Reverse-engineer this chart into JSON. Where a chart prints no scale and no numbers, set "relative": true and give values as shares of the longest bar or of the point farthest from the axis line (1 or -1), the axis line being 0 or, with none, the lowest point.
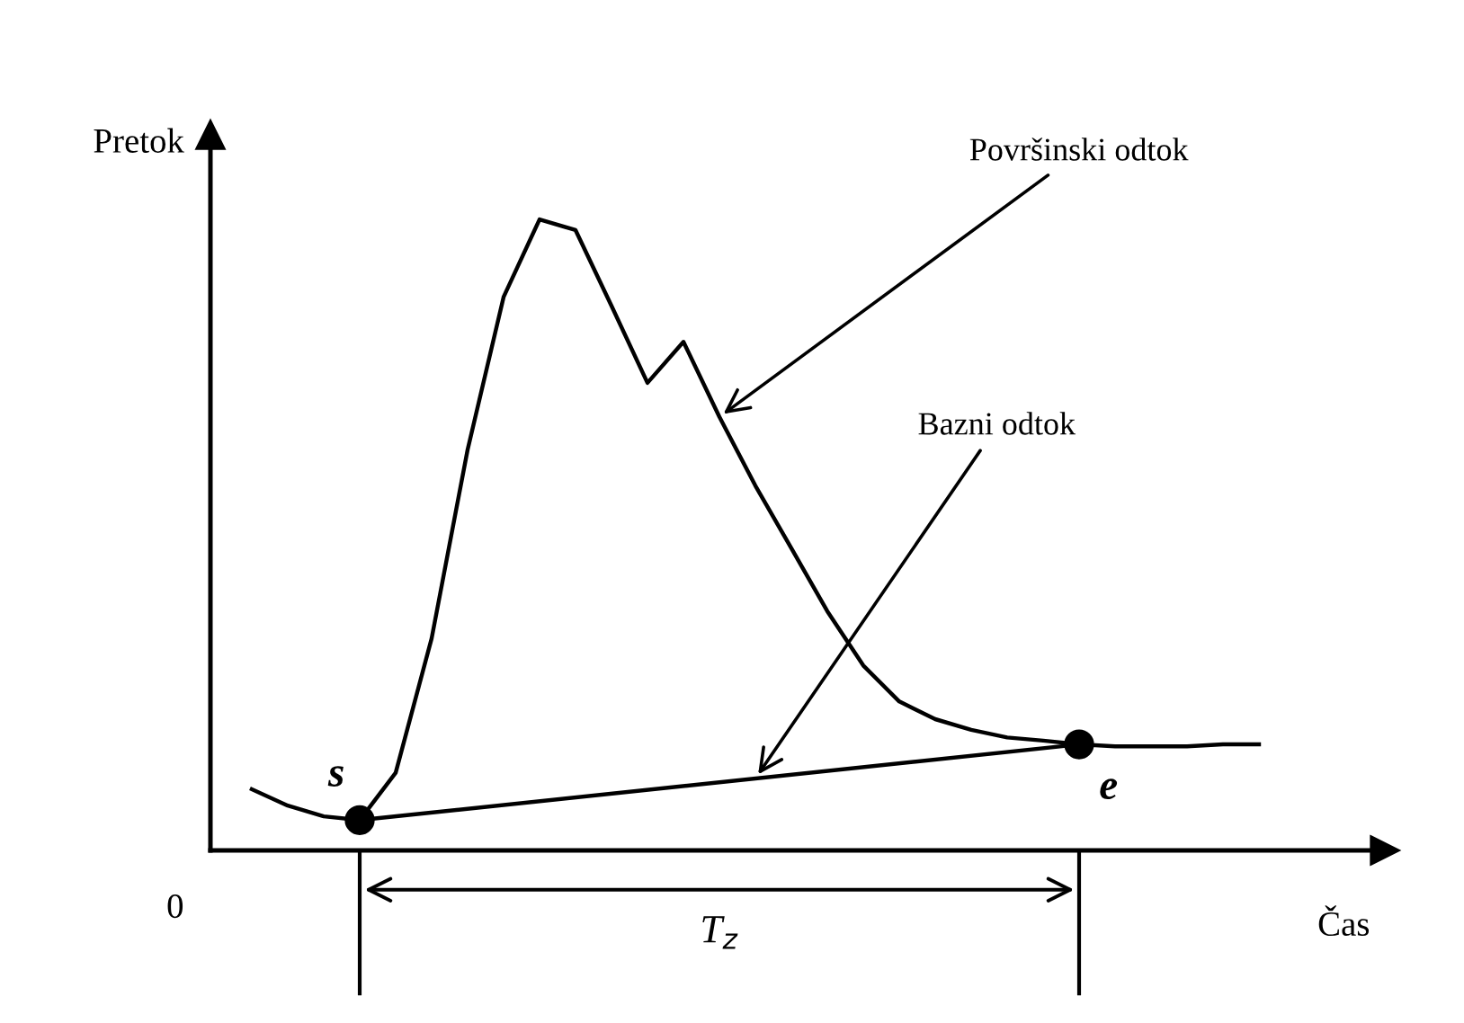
{
  "chart_data": {
    "type": "line",
    "relative": true,
    "xlabel": "Čas",
    "ylabel": "Pretok",
    "tick_labels": false,
    "marker": "none",
    "line_style": "solid",
    "annotations": [
      "0",
      "s",
      "e",
      "T$_{z}$"
    ],
    "categories": [
      null,
      null,
      null,
      null,
      null,
      null,
      null,
      null,
      null,
      null,
      null,
      null,
      null,
      null,
      null,
      null,
      null,
      null,
      null,
      null,
      null,
      null,
      null,
      null,
      null,
      null,
      null,
      null,
      null
    ],
    "series": [
      {
        "name": "Površinski odtok",
        "color": "#000000",
        "values": [
          0.097,
          0.071,
          0.054,
          0.048,
          0.123,
          0.336,
          0.635,
          0.877,
          1,
          0.983,
          0.863,
          0.741,
          0.806,
          0.687,
          0.578,
          0.479,
          0.379,
          0.293,
          0.236,
          0.208,
          0.191,
          0.179,
          0.174,
          0.168,
          0.165,
          0.165,
          0.165,
          0.168,
          0.168
        ]
      },
      {
        "name": "Bazni odtok",
        "color": "#000000",
        "values": [
          null,
          null,
          null,
          0.048,
          null,
          null,
          null,
          null,
          null,
          null,
          null,
          null,
          null,
          null,
          null,
          null,
          null,
          null,
          null,
          null,
          null,
          null,
          null,
          0.168,
          null,
          null,
          null,
          null,
          null
        ]
      }
    ]
  }
}
